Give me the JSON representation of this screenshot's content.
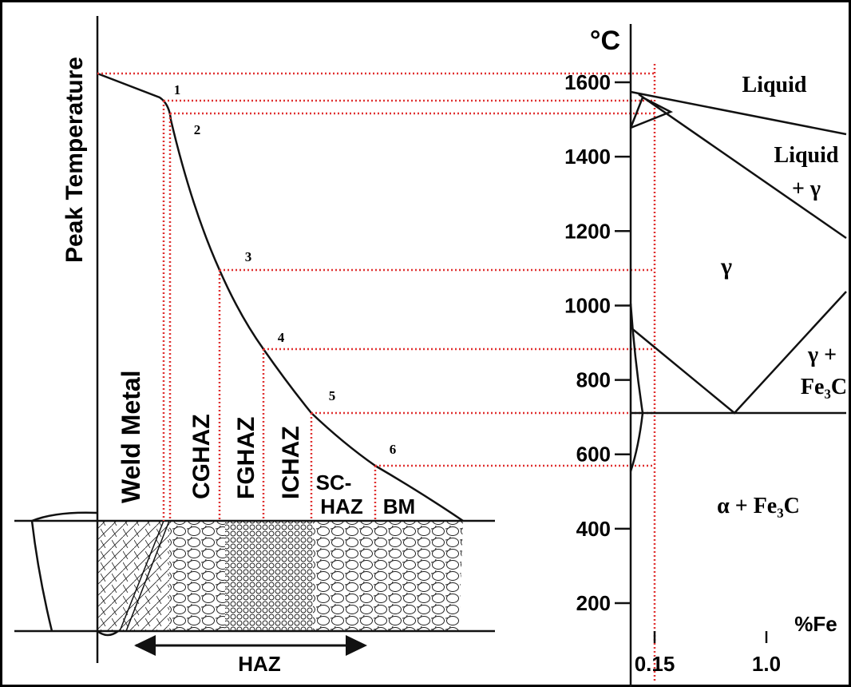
{
  "haz_diagram": {
    "y_axis_label": "Peak Temperature",
    "points": [
      "1",
      "2",
      "3",
      "4",
      "5",
      "6"
    ],
    "zones": [
      "Weld Metal",
      "CGHAZ",
      "FGHAZ",
      "ICHAZ"
    ],
    "sc_haz": [
      "SC-",
      "HAZ"
    ],
    "bm": "BM",
    "haz_arrow": "HAZ"
  },
  "phase_diagram": {
    "unit": "°C",
    "yticks": [
      1600,
      1400,
      1200,
      1000,
      800,
      600,
      400,
      200
    ],
    "x_label": "%Fe",
    "xticks": [
      "0.15",
      "1.0"
    ],
    "regions": [
      "Liquid",
      "Liquid",
      "+ γ",
      "γ",
      "γ +",
      "Fe₃C",
      "α + Fe₃C"
    ]
  }
}
